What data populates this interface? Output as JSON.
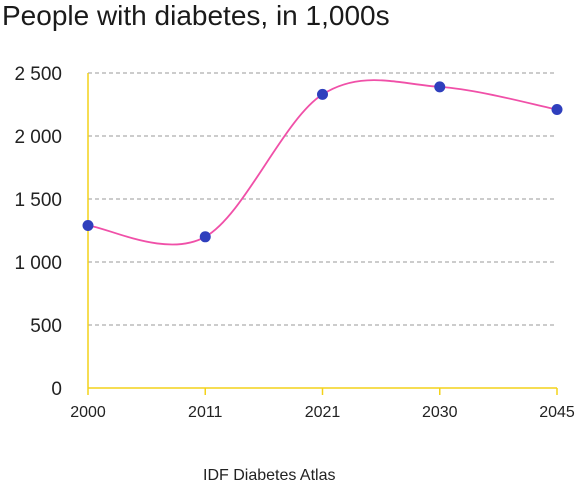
{
  "colors": {
    "line": "#f050a8",
    "point": "#2f3fbd",
    "axis": "#f3d21a",
    "grid": "#9a9a9a",
    "text": "#222222"
  },
  "chart_data": {
    "type": "line",
    "title": "People with diabetes, in 1,000s",
    "xlabel": "",
    "ylabel": "",
    "source": "IDF Diabetes Atlas",
    "categories": [
      "2000",
      "2011",
      "2021",
      "2030",
      "2045"
    ],
    "series": [
      {
        "values": [
          1290,
          1200,
          2330,
          2390,
          2210
        ]
      }
    ],
    "ylim": [
      0,
      2500
    ],
    "yticks": [
      {
        "value": 0,
        "label": "0"
      },
      {
        "value": 500,
        "label": "500"
      },
      {
        "value": 1000,
        "label": "1 000"
      },
      {
        "value": 1500,
        "label": "1 500"
      },
      {
        "value": 2000,
        "label": "2 000"
      },
      {
        "value": 2500,
        "label": "2 500"
      }
    ],
    "grid": true,
    "curve": "smooth"
  }
}
